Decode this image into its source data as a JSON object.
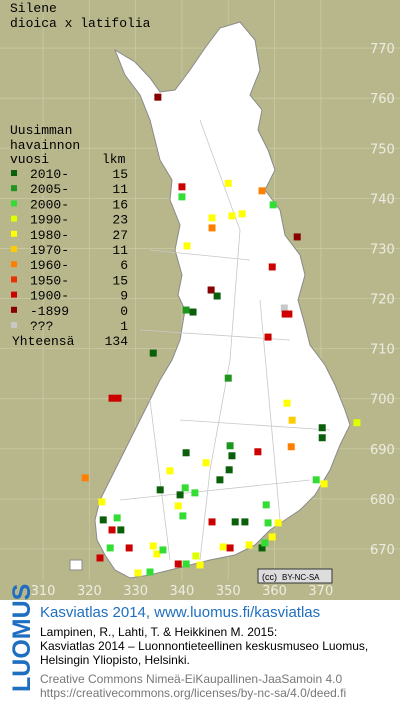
{
  "header": {
    "title_lines": [
      "Silene",
      "dioica x latifolia"
    ]
  },
  "legend": {
    "heading_lines": [
      "Uusimman",
      "havainnon",
      "vuosi"
    ],
    "count_heading": "lkm",
    "classes": [
      {
        "label": "2010-",
        "count": 15,
        "color": "#0a5f0a"
      },
      {
        "label": "2005-",
        "count": 11,
        "color": "#1e961e"
      },
      {
        "label": "2000-",
        "count": 16,
        "color": "#33dd33"
      },
      {
        "label": "1990-",
        "count": 23,
        "color": "#ddff00"
      },
      {
        "label": "1980-",
        "count": 27,
        "color": "#ffff00"
      },
      {
        "label": "1970-",
        "count": 11,
        "color": "#ffcc00"
      },
      {
        "label": "1960-",
        "count": 6,
        "color": "#ff8000"
      },
      {
        "label": "1950-",
        "count": 15,
        "color": "#e83000"
      },
      {
        "label": "1900-",
        "count": 9,
        "color": "#cc0000"
      },
      {
        "label": "-1899",
        "count": 0,
        "color": "#880000"
      },
      {
        "label": "???",
        "count": 1,
        "color": "#c8c8c8"
      }
    ],
    "total_label": "Yhteensä",
    "total": 134
  },
  "map": {
    "xlim": [
      300.7,
      387.1
    ],
    "ylim": [
      663.8,
      779.6
    ],
    "xticks": [
      310,
      320,
      330,
      340,
      350,
      360,
      370
    ],
    "yticks": [
      670,
      680,
      690,
      700,
      710,
      720,
      730,
      740,
      750,
      760,
      770
    ],
    "squares": [
      [
        334.8,
        760.2,
        9
      ],
      [
        340,
        742.3,
        8
      ],
      [
        340,
        740.3,
        2
      ],
      [
        350,
        743,
        4
      ],
      [
        357.3,
        741.5,
        6
      ],
      [
        359.7,
        738.7,
        2
      ],
      [
        346.5,
        736.1,
        4
      ],
      [
        346.5,
        734.1,
        6
      ],
      [
        350.8,
        736.5,
        4
      ],
      [
        353,
        736.9,
        4
      ],
      [
        364.9,
        732.3,
        9
      ],
      [
        341.1,
        730.5,
        4
      ],
      [
        359.5,
        726.3,
        8
      ],
      [
        346.3,
        721.7,
        9
      ],
      [
        347.6,
        720.5,
        0
      ],
      [
        340.9,
        717.7,
        1
      ],
      [
        342.4,
        717.3,
        0
      ],
      [
        362.1,
        718.1,
        10
      ],
      [
        362.3,
        716.9,
        8
      ],
      [
        363.1,
        716.9,
        8
      ],
      [
        358.6,
        712.3,
        8
      ],
      [
        333.8,
        709.1,
        0
      ],
      [
        350,
        704.1,
        1
      ],
      [
        324.9,
        700.1,
        8
      ],
      [
        326.2,
        700.1,
        8
      ],
      [
        362.7,
        699.1,
        4
      ],
      [
        377.8,
        695.2,
        3
      ],
      [
        363.8,
        695.7,
        5
      ],
      [
        370.3,
        694.2,
        0
      ],
      [
        370.3,
        692.2,
        0
      ],
      [
        363.6,
        690.4,
        6
      ],
      [
        356.4,
        689.4,
        8
      ],
      [
        350.4,
        690.6,
        1
      ],
      [
        350.8,
        688.6,
        0
      ],
      [
        350.2,
        685.8,
        0
      ],
      [
        345.2,
        687.2,
        4
      ],
      [
        340.9,
        689.2,
        0
      ],
      [
        337.4,
        685.6,
        4
      ],
      [
        335.3,
        681.8,
        0
      ],
      [
        339.6,
        680.8,
        0
      ],
      [
        340.7,
        682.2,
        2
      ],
      [
        342.8,
        681.2,
        2
      ],
      [
        339.2,
        678.6,
        4
      ],
      [
        340.2,
        676.6,
        2
      ],
      [
        322.7,
        679.4,
        4
      ],
      [
        323,
        675.8,
        0
      ],
      [
        324.9,
        673.8,
        8
      ],
      [
        328.6,
        670.2,
        8
      ],
      [
        324.5,
        670.2,
        2
      ],
      [
        322.3,
        668.2,
        8
      ],
      [
        319.1,
        684.2,
        6
      ],
      [
        326,
        676.2,
        2
      ],
      [
        326.8,
        673.8,
        0
      ],
      [
        333.8,
        670.6,
        4
      ],
      [
        334.6,
        669,
        4
      ],
      [
        335.9,
        669.8,
        2
      ],
      [
        343,
        668.6,
        3
      ],
      [
        340.9,
        667,
        2
      ],
      [
        346.5,
        675.4,
        8
      ],
      [
        351.5,
        675.4,
        0
      ],
      [
        353.6,
        675.4,
        0
      ],
      [
        348.9,
        670.4,
        4
      ],
      [
        350.4,
        670.2,
        8
      ],
      [
        354.5,
        670.8,
        4
      ],
      [
        358.2,
        678.8,
        2
      ],
      [
        358.6,
        675.2,
        2
      ],
      [
        360.8,
        675.2,
        4
      ],
      [
        359.5,
        672.4,
        4
      ],
      [
        357.3,
        670.2,
        0
      ],
      [
        357.9,
        671.2,
        2
      ],
      [
        369,
        683.8,
        2
      ],
      [
        370.7,
        683,
        4
      ],
      [
        348.2,
        683.8,
        0
      ],
      [
        330.5,
        665.2,
        4
      ],
      [
        333.1,
        665.4,
        2
      ],
      [
        339.2,
        667,
        8
      ],
      [
        343.9,
        666.8,
        4
      ]
    ],
    "license_badge": {
      "icon": "(cc)",
      "text": "BY-NC-SA"
    }
  },
  "footer": {
    "logo": "LUOMUS",
    "headline": "Kasviatlas 2014, www.luomus.fi/kasviatlas",
    "citation_lines": [
      "Lampinen, R., Lahti, T. & Heikkinen M. 2015:",
      "Kasviatlas 2014 – Luonnontieteellinen keskusmuseo Luomus,",
      "Helsingin Yliopisto, Helsinki."
    ],
    "license_lines": [
      "Creative Commons Nimeä-EiKaupallinen-JaaSamoin 4.0",
      "https://creativecommons.org/licenses/by-nc-sa/4.0/deed.fi"
    ]
  }
}
